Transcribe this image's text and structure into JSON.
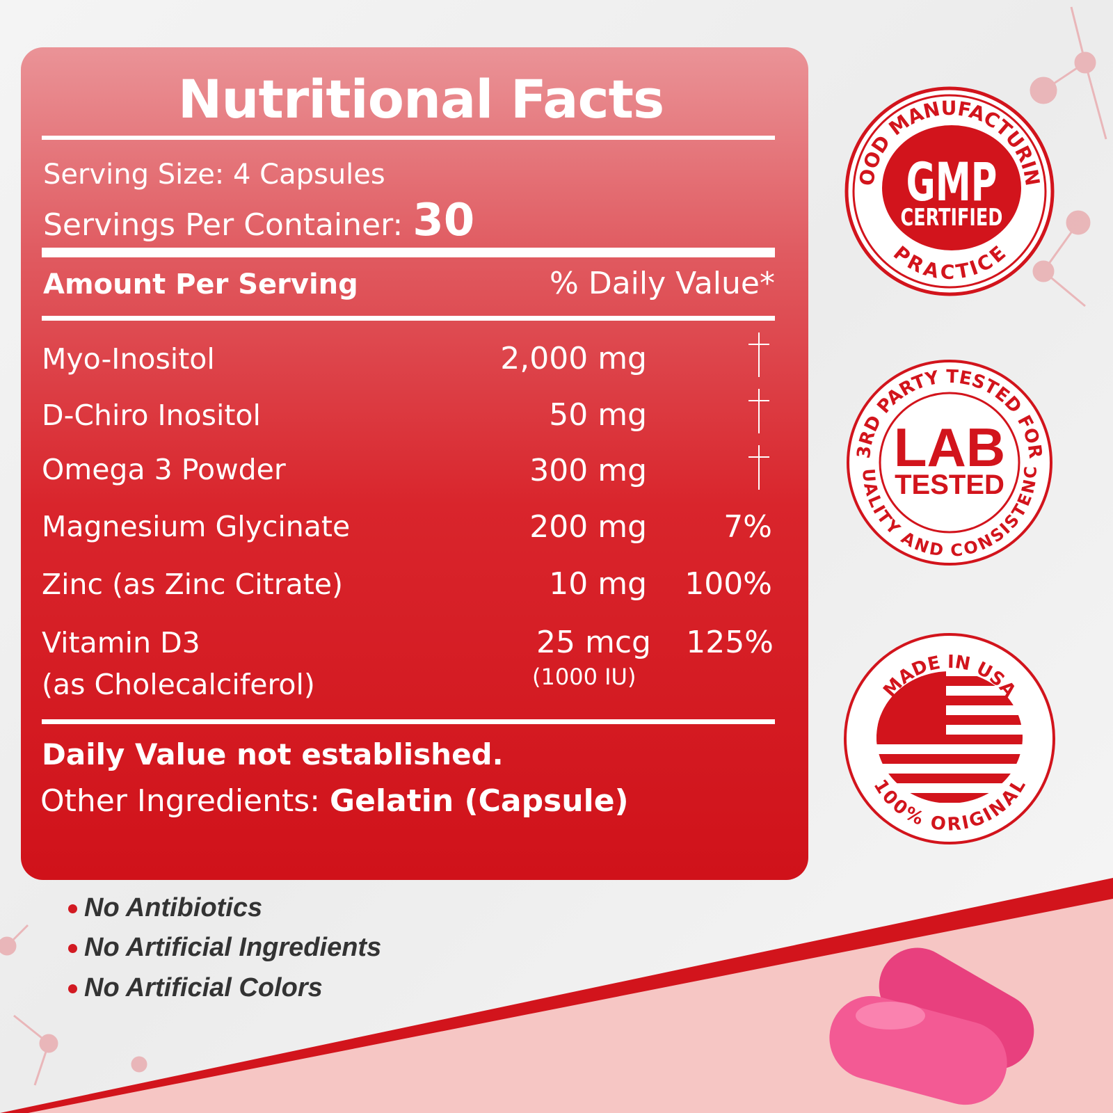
{
  "title": "Nutritional Facts",
  "serving_size": "Serving Size: 4 Capsules",
  "servings_per_container_label": "Servings Per Container:",
  "servings_per_container": "30",
  "header": {
    "amount": "Amount Per Serving",
    "dv": "% Daily Value*"
  },
  "rows": [
    {
      "name": "Myo-Inositol",
      "amount": "2,000 mg",
      "dv": "†"
    },
    {
      "name": "D-Chiro Inositol",
      "amount": "50 mg",
      "dv": "†"
    },
    {
      "name": "Omega 3 Powder",
      "amount": "300 mg",
      "dv": "†"
    },
    {
      "name": "Magnesium Glycinate",
      "amount": "200 mg",
      "dv": "7%"
    },
    {
      "name": "Zinc",
      "name_sub": "(as Zinc Citrate)",
      "amount": "10 mg",
      "dv": "100%"
    },
    {
      "name": "Vitamin D3",
      "name_sub": "(as Cholecalciferol)",
      "amount": "25 mcg",
      "amount_sub": "(1000 IU)",
      "dv": "125%"
    }
  ],
  "footnote": "Daily Value not established.",
  "other_label": "Other Ingredients:",
  "other_value": "Gelatin (Capsule)",
  "bullets": [
    "No Antibiotics",
    "No Artificial Ingredients",
    "No Artificial Colors"
  ],
  "badges": [
    {
      "top": "GOOD MANUFACTURING",
      "bottom": "PRACTICE",
      "main": "GMP",
      "sub": "CERTIFIED"
    },
    {
      "top": "3RD PARTY TESTED FOR",
      "bottom": "QUALITY AND CONSISTENCY",
      "main": "LAB",
      "sub": "TESTED"
    },
    {
      "top": "MADE IN USA",
      "bottom": "100% ORIGINAL"
    }
  ],
  "colors": {
    "accent": "#d2141c",
    "pill": "#f0508e",
    "text_dark": "#333333"
  }
}
